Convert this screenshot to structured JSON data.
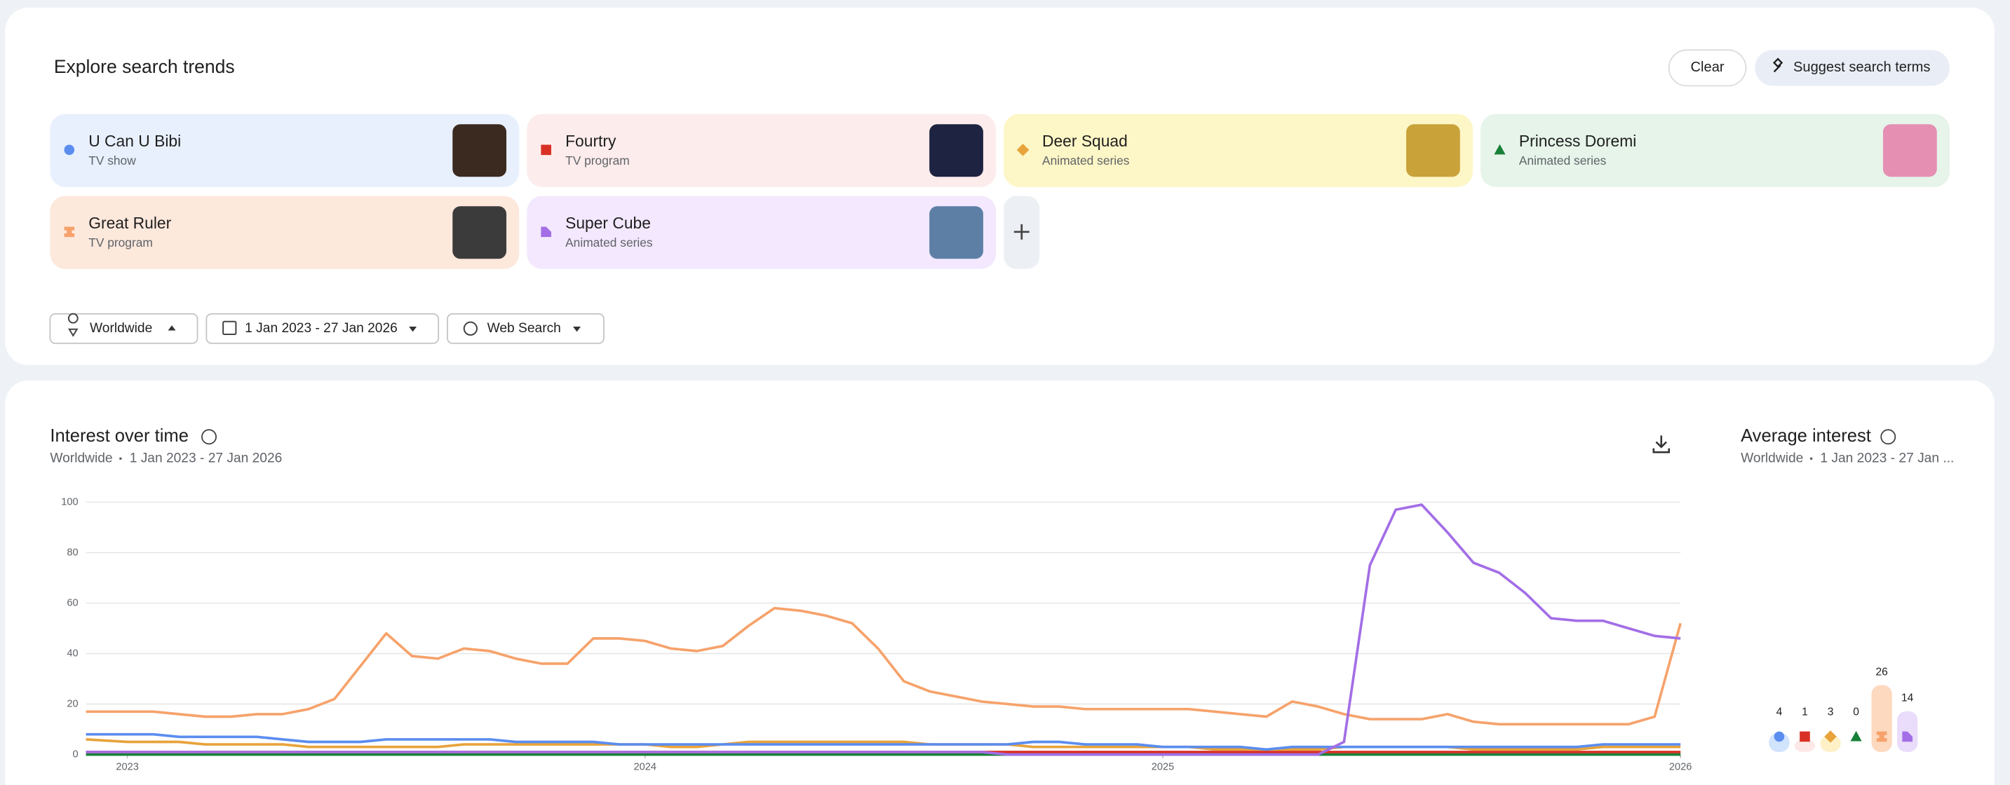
{
  "header": {
    "title": "Explore search trends",
    "clear": "Clear",
    "suggest": "Suggest search terms"
  },
  "search_terms": [
    {
      "subtitle": "TV show"
    },
    {
      "subtitle": "TV program"
    },
    {
      "subtitle": "Animated series"
    },
    {
      "subtitle": "Animated series"
    },
    {
      "subtitle": "TV program"
    },
    {
      "subtitle": "Animated series"
    }
  ],
  "filters": {
    "location": "Worldwide",
    "date_range": "1 Jan 2023 - 27 Jan 2026",
    "property": "Web Search"
  },
  "chart_data": [
    {
      "type": "line",
      "title": "Interest over time",
      "subtitle_location": "Worldwide",
      "subtitle_range": "1 Jan 2023 - 27 Jan 2026",
      "x": [
        2022.92,
        2023,
        2023.05,
        2023.1,
        2023.15,
        2023.2,
        2023.25,
        2023.3,
        2023.35,
        2023.4,
        2023.45,
        2023.5,
        2023.55,
        2023.6,
        2023.65,
        2023.7,
        2023.75,
        2023.8,
        2023.85,
        2023.9,
        2023.95,
        2024,
        2024.05,
        2024.1,
        2024.15,
        2024.2,
        2024.25,
        2024.3,
        2024.35,
        2024.4,
        2024.45,
        2024.5,
        2024.55,
        2024.6,
        2024.65,
        2024.7,
        2024.75,
        2024.8,
        2024.85,
        2024.9,
        2024.95,
        2025,
        2025.05,
        2025.1,
        2025.15,
        2025.2,
        2025.25,
        2025.3,
        2025.35,
        2025.4,
        2025.45,
        2025.5,
        2025.55,
        2025.6,
        2025.65,
        2025.7,
        2025.75,
        2025.8,
        2025.85,
        2025.9,
        2025.95,
        2026
      ],
      "xlim": [
        2022.92,
        2026
      ],
      "xticks": [
        2023,
        2024,
        2025,
        2026
      ],
      "ylim": [
        0,
        100
      ],
      "yticks": [
        0,
        20,
        40,
        60,
        80,
        100
      ],
      "grid": true,
      "series": [
        {
          "name": "U Can U Bibi",
          "color": "#5b8def",
          "values": [
            8,
            8,
            8,
            7,
            7,
            7,
            7,
            6,
            5,
            5,
            5,
            6,
            6,
            6,
            6,
            6,
            5,
            5,
            5,
            5,
            4,
            4,
            4,
            4,
            4,
            4,
            4,
            4,
            4,
            4,
            4,
            4,
            4,
            4,
            4,
            4,
            5,
            5,
            4,
            4,
            4,
            3,
            3,
            3,
            3,
            2,
            3,
            3,
            3,
            3,
            3,
            3,
            3,
            3,
            3,
            3,
            3,
            3,
            4,
            4,
            4,
            4
          ]
        },
        {
          "name": "Fourtry",
          "color": "#d93025",
          "values": [
            1,
            1,
            1,
            1,
            1,
            1,
            1,
            1,
            1,
            1,
            1,
            1,
            1,
            1,
            1,
            1,
            1,
            1,
            1,
            1,
            1,
            1,
            1,
            1,
            1,
            1,
            1,
            1,
            1,
            1,
            1,
            1,
            1,
            1,
            1,
            1,
            1,
            1,
            1,
            1,
            1,
            1,
            1,
            1,
            1,
            1,
            1,
            1,
            1,
            1,
            1,
            1,
            1,
            1,
            1,
            1,
            1,
            1,
            1,
            1,
            1,
            1
          ]
        },
        {
          "name": "Deer Squad",
          "color": "#e8a33b",
          "values": [
            6,
            5,
            5,
            5,
            4,
            4,
            4,
            4,
            3,
            3,
            3,
            3,
            3,
            3,
            4,
            4,
            4,
            4,
            4,
            4,
            4,
            4,
            3,
            3,
            4,
            5,
            5,
            5,
            5,
            5,
            5,
            5,
            4,
            4,
            4,
            4,
            3,
            3,
            3,
            3,
            3,
            3,
            3,
            2,
            2,
            2,
            2,
            2,
            3,
            3,
            3,
            3,
            3,
            2,
            2,
            2,
            2,
            2,
            3,
            3,
            3,
            3
          ]
        },
        {
          "name": "Princess Doremi",
          "color": "#188038",
          "values": [
            0,
            0,
            0,
            0,
            0,
            0,
            0,
            0,
            0,
            0,
            0,
            0,
            0,
            0,
            0,
            0,
            0,
            0,
            0,
            0,
            0,
            0,
            0,
            0,
            0,
            0,
            0,
            0,
            0,
            0,
            0,
            0,
            0,
            0,
            0,
            0,
            0,
            0,
            0,
            0,
            0,
            0,
            0,
            0,
            0,
            0,
            0,
            0,
            0,
            0,
            0,
            0,
            0,
            0,
            0,
            0,
            0,
            0,
            0,
            0,
            0,
            0
          ]
        },
        {
          "name": "Great Ruler",
          "color": "#f6a26b",
          "values": [
            17,
            17,
            17,
            16,
            15,
            15,
            16,
            16,
            18,
            22,
            35,
            48,
            39,
            38,
            42,
            41,
            38,
            36,
            36,
            46,
            46,
            45,
            42,
            41,
            43,
            51,
            58,
            57,
            55,
            52,
            42,
            29,
            25,
            23,
            21,
            20,
            19,
            19,
            18,
            18,
            18,
            18,
            18,
            17,
            16,
            15,
            21,
            19,
            16,
            14,
            14,
            14,
            16,
            13,
            12,
            12,
            12,
            12,
            12,
            12,
            15,
            52
          ]
        },
        {
          "name": "Super Cube",
          "color": "#a36ee6",
          "values": [
            1,
            1,
            1,
            1,
            1,
            1,
            1,
            1,
            1,
            1,
            1,
            1,
            1,
            1,
            1,
            1,
            1,
            1,
            1,
            1,
            1,
            1,
            1,
            1,
            1,
            1,
            1,
            1,
            1,
            1,
            1,
            1,
            1,
            1,
            1,
            0,
            0,
            0,
            0,
            0,
            0,
            0,
            0,
            0,
            0,
            0,
            0,
            0,
            5,
            75,
            97,
            99,
            88,
            76,
            72,
            64,
            54,
            53,
            53,
            50,
            47,
            46
          ]
        }
      ]
    },
    {
      "type": "bar",
      "title": "Average interest",
      "subtitle_location": "Worldwide",
      "subtitle_range": "1 Jan 2023 - 27 Jan ...",
      "values": [
        4,
        1,
        3,
        0,
        26,
        14
      ],
      "colors": [
        "#d2e3fc",
        "#fce8e6",
        "#fef0c7",
        "#ceead6",
        "#fdd9bf",
        "#eadcfb"
      ]
    }
  ]
}
